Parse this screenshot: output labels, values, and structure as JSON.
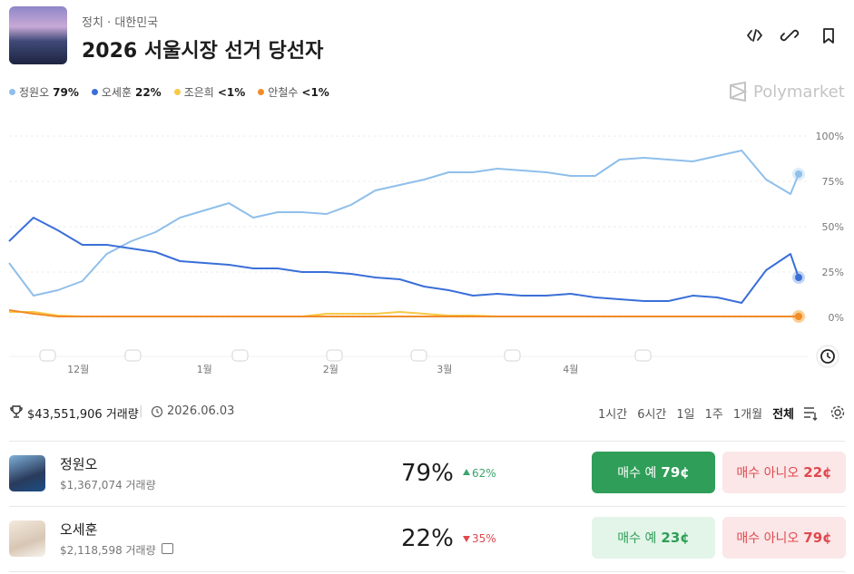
{
  "header": {
    "category": "정치",
    "subcategory": "대한민국",
    "title": "2026 서울시장 선거 당선자"
  },
  "brand": "Polymarket",
  "chart_data": {
    "type": "line",
    "x": [
      -17,
      -11,
      -5,
      1,
      7,
      13,
      19,
      25,
      31,
      37,
      43,
      49,
      55,
      61,
      67,
      73,
      79,
      85,
      91,
      97,
      103,
      109,
      115,
      121,
      127,
      133,
      139,
      145,
      151,
      157,
      163,
      169,
      175,
      177
    ],
    "series": [
      {
        "name": "정원오",
        "current": "79%",
        "color": "#8fbfea",
        "values": [
          30,
          12,
          15,
          20,
          35,
          42,
          47,
          55,
          59,
          63,
          55,
          58,
          58,
          57,
          62,
          70,
          73,
          76,
          80,
          80,
          82,
          81,
          80,
          78,
          78,
          87,
          88,
          87,
          86,
          89,
          92,
          76,
          68,
          79
        ]
      },
      {
        "name": "오세훈",
        "current": "22%",
        "color": "#3a6fd8",
        "values": [
          42,
          55,
          48,
          40,
          40,
          38,
          36,
          31,
          30,
          29,
          27,
          27,
          25,
          25,
          24,
          22,
          21,
          17,
          15,
          12,
          13,
          12,
          12,
          13,
          11,
          10,
          9,
          9,
          12,
          11,
          8,
          26,
          35,
          22
        ]
      },
      {
        "name": "조은희",
        "current": "<1%",
        "color": "#f7c948",
        "values": [
          3,
          3,
          1,
          0.5,
          0.5,
          0.5,
          0.5,
          0.5,
          0.5,
          0.5,
          0.5,
          0.5,
          0.5,
          2,
          2,
          2,
          3,
          2,
          1,
          1,
          0.5,
          0.5,
          0.5,
          0.5,
          0.5,
          0.5,
          0.5,
          0.5,
          0.5,
          0.5,
          0.5,
          0.5,
          0.5,
          0.5
        ]
      },
      {
        "name": "안철수",
        "current": "<1%",
        "color": "#f28c28",
        "values": [
          4,
          2,
          0.5,
          0.5,
          0.5,
          0.5,
          0.5,
          0.5,
          0.5,
          0.5,
          0.5,
          0.5,
          0.5,
          0.5,
          0.5,
          0.5,
          0.5,
          0.5,
          0.5,
          0.5,
          0.5,
          0.5,
          0.5,
          0.5,
          0.5,
          0.5,
          0.5,
          0.5,
          0.5,
          0.5,
          0.5,
          0.5,
          0.5,
          0.5
        ]
      }
    ],
    "xlim": [
      -17,
      177
    ],
    "xticks": [
      {
        "value": 0,
        "label": "12월"
      },
      {
        "value": 31,
        "label": "1월"
      },
      {
        "value": 62,
        "label": "2월"
      },
      {
        "value": 90,
        "label": "3월"
      },
      {
        "value": 121,
        "label": "4월"
      }
    ],
    "ylim": [
      -10,
      105
    ],
    "yticks": [
      {
        "value": 0,
        "label": "0%"
      },
      {
        "value": 25,
        "label": "25%"
      },
      {
        "value": 50,
        "label": "50%"
      },
      {
        "value": 75,
        "label": "75%"
      },
      {
        "value": 100,
        "label": "100%"
      }
    ],
    "grid": true
  },
  "stats": {
    "volume": "$43,551,906 거래량",
    "date": "2026.06.03"
  },
  "ranges": [
    "1시간",
    "6시간",
    "1일",
    "1주",
    "1개월",
    "전체"
  ],
  "markets": [
    {
      "name": "정원오",
      "volume": "$1,367,074 거래량",
      "chance": "79%",
      "change": "62%",
      "yes_label": "매수 예",
      "yes_price": "79¢",
      "no_label": "매수 아니오",
      "no_price": "22¢"
    },
    {
      "name": "오세훈",
      "volume": "$2,118,598 거래량",
      "chance": "22%",
      "change": "35%",
      "yes_label": "매수 예",
      "yes_price": "23¢",
      "no_label": "매수 아니오",
      "no_price": "79¢"
    }
  ]
}
